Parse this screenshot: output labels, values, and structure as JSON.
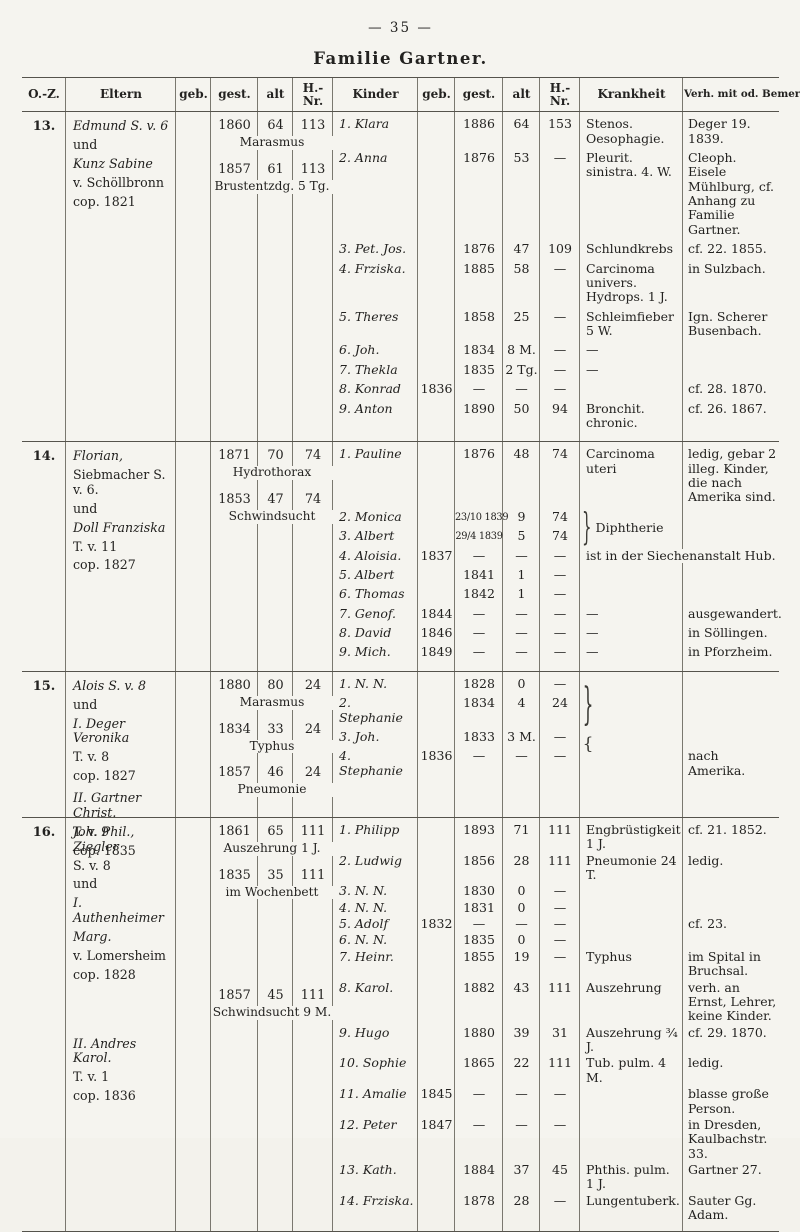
{
  "page": {
    "number": "— 35 —",
    "title": "Familie Gartner."
  },
  "table": {
    "headers": {
      "oz": "O.-Z.",
      "eltern": "Eltern",
      "pgeb": "geb.",
      "pgest": "gest.",
      "palt": "alt",
      "phnr": "H.-Nr.",
      "kinder": "Kinder",
      "kgeb": "geb.",
      "kgest": "gest.",
      "kalt": "alt",
      "khnr": "H.-Nr.",
      "krankheit": "Krankheit",
      "bemerk": "Verh. mit od. Bemerk."
    },
    "families": [
      {
        "number": "13.",
        "eltern": [
          {
            "t": "Edmund S. v. 6",
            "i": 1
          },
          {
            "t": "und"
          },
          {
            "t": "Kunz Sabine",
            "i": 1
          },
          {
            "t": "v. Schöllbronn"
          },
          {
            "t": "cop. 1821"
          }
        ],
        "parents": [
          {
            "gest": "1860",
            "alt": "64",
            "hnr": "113",
            "cause": "Marasmus"
          },
          {
            "gest": "1857",
            "alt": "61",
            "hnr": "113",
            "cause": "Brustentzdg. 5 Tg."
          }
        ],
        "children": [
          {
            "name": "1. Klara",
            "gest": "1886",
            "alt": "64",
            "hnr": "153",
            "krankheit": "Stenos. Oesophagie.",
            "bemerk": "Deger 19. 1839."
          },
          {
            "name": "2. Anna",
            "gest": "1876",
            "alt": "53",
            "hnr": "—",
            "krankheit": "Pleurit. sinistra. 4. W.",
            "bemerk": "Cleoph. Eisele Mühlburg, cf. Anhang zu Familie Gartner."
          },
          {
            "name": "3. Pet. Jos.",
            "gest": "1876",
            "alt": "47",
            "hnr": "109",
            "krankheit": "Schlundkrebs",
            "bemerk": "cf. 22. 1855."
          },
          {
            "name": "4. Frziska.",
            "gest": "1885",
            "alt": "58",
            "hnr": "—",
            "krankheit": "Carcinoma univers. Hydrops. 1 J.",
            "bemerk": "in Sulzbach."
          },
          {
            "name": "5. Theres",
            "gest": "1858",
            "alt": "25",
            "hnr": "—",
            "krankheit": "Schleimfieber 5 W.",
            "bemerk": "Ign. Scherer Busenbach."
          },
          {
            "name": "6. Joh.",
            "gest": "1834",
            "alt": "8 M.",
            "hnr": "—",
            "krankheit": "—"
          },
          {
            "name": "7. Thekla",
            "gest": "1835",
            "alt": "2 Tg.",
            "hnr": "—",
            "krankheit": "—"
          },
          {
            "name": "8. Konrad",
            "geb": "1836",
            "gest": "—",
            "alt": "—",
            "hnr": "—",
            "bemerk": "cf. 28. 1870."
          },
          {
            "name": "9. Anton",
            "gest": "1890",
            "alt": "50",
            "hnr": "94",
            "krankheit": "Bronchit. chronic.",
            "bemerk": "cf. 26. 1867."
          }
        ]
      },
      {
        "number": "14.",
        "eltern": [
          {
            "t": "Florian,",
            "i": 1
          },
          {
            "t": "Siebmacher S. v. 6."
          },
          {
            "t": "und"
          },
          {
            "t": "Doll Franziska",
            "i": 1
          },
          {
            "t": "T. v. 11"
          },
          {
            "t": "cop. 1827"
          }
        ],
        "parents": [
          {
            "gest": "1871",
            "alt": "70",
            "hnr": "74",
            "cause": "Hydrothorax"
          },
          {
            "gest": "1853",
            "alt": "47",
            "hnr": "74",
            "cause": "Schwindsucht"
          }
        ],
        "children": [
          {
            "name": "1. Pauline",
            "gest": "1876",
            "alt": "48",
            "hnr": "74",
            "krankheit": "Carcinoma uteri",
            "bemerk": "ledig, gebar 2 illeg. Kinder, die nach Amerika sind."
          },
          {
            "name": "2. Monica",
            "gest": "23/10 1839",
            "alt": "9",
            "hnr": "74",
            "krankheit": "Diphtherie",
            "krank_brace": true
          },
          {
            "name": "3. Albert",
            "gest": "29/4 1839",
            "alt": "5",
            "hnr": "74"
          },
          {
            "name": "4. Aloisia.",
            "geb": "1837",
            "gest": "—",
            "alt": "—",
            "hnr": "—",
            "krankheit": "ist in der Siechenanstalt Hub.",
            "krank_span": true
          },
          {
            "name": "5. Albert",
            "gest": "1841",
            "alt": "1",
            "hnr": "—"
          },
          {
            "name": "6. Thomas",
            "gest": "1842",
            "alt": "1",
            "hnr": "—"
          },
          {
            "name": "7. Genof.",
            "geb": "1844",
            "gest": "—",
            "alt": "—",
            "hnr": "—",
            "krankheit": "—",
            "bemerk": "ausgewandert."
          },
          {
            "name": "8. David",
            "geb": "1846",
            "gest": "—",
            "alt": "—",
            "hnr": "—",
            "krankheit": "—",
            "bemerk": "in Söllingen."
          },
          {
            "name": "9. Mich.",
            "geb": "1849",
            "gest": "—",
            "alt": "—",
            "hnr": "—",
            "krankheit": "—",
            "bemerk": "in Pforzheim."
          }
        ]
      },
      {
        "number": "15.",
        "eltern": [
          {
            "t": "Alois S. v. 8",
            "i": 1
          },
          {
            "t": "und"
          },
          {
            "t": "I. Deger Veronika",
            "i": 1
          },
          {
            "t": "T. v. 8"
          },
          {
            "t": "cop. 1827"
          },
          {
            "t": "II. Gartner Christ.",
            "i": 1
          },
          {
            "t": "T. v. 9"
          },
          {
            "t": "cop. 1835"
          }
        ],
        "parents": [
          {
            "gest": "1880",
            "alt": "80",
            "hnr": "24",
            "cause": "Marasmus"
          },
          {
            "gest": "1834",
            "alt": "33",
            "hnr": "24",
            "cause": "Typhus"
          },
          {
            "gest": "1857",
            "alt": "46",
            "hnr": "24",
            "cause": "Pneumonie"
          }
        ],
        "children": [
          {
            "name": "1. N. N.",
            "gest": "1828",
            "alt": "0",
            "hnr": "—"
          },
          {
            "name": "2. Stephanie",
            "gest": "1834",
            "alt": "4",
            "hnr": "24"
          },
          {
            "name": "3. Joh.",
            "gest": "1833",
            "alt": "3 M.",
            "hnr": "—"
          },
          {
            "name": "4. Stephanie",
            "geb": "1836",
            "gest": "—",
            "alt": "—",
            "hnr": "—",
            "bemerk": "nach Amerika."
          }
        ],
        "braces": [
          {
            "glyph": "}",
            "row_start": 0,
            "row_count": 3
          },
          {
            "glyph": "{",
            "row_start": 3,
            "row_count": 1
          }
        ]
      },
      {
        "number": "16.",
        "eltern": [
          {
            "t": "Joh. Phil., Ziegler",
            "i": 1
          },
          {
            "t": "S. v. 8"
          },
          {
            "t": "und"
          },
          {
            "t": "I. Authenheimer",
            "i": 1
          },
          {
            "t": "Marg.",
            "i": 1
          },
          {
            "t": "v. Lomersheim"
          },
          {
            "t": "cop. 1828"
          },
          {
            "t": "II. Andres Karol.",
            "i": 1
          },
          {
            "t": "T. v. 1"
          },
          {
            "t": "cop. 1836"
          }
        ],
        "parents": [
          {
            "gest": "1861",
            "alt": "65",
            "hnr": "111",
            "cause": "Auszehrung 1 J."
          },
          {
            "gest": "1835",
            "alt": "35",
            "hnr": "111",
            "cause": "im Wochenbett"
          },
          {
            "gest": "1857",
            "alt": "45",
            "hnr": "111",
            "cause": "Schwindsucht 9 M."
          }
        ],
        "children": [
          {
            "name": "1. Philipp",
            "gest": "1893",
            "alt": "71",
            "hnr": "111",
            "krankheit": "Engbrüstigkeit 1 J.",
            "bemerk": "cf. 21. 1852."
          },
          {
            "name": "2. Ludwig",
            "gest": "1856",
            "alt": "28",
            "hnr": "111",
            "krankheit": "Pneumonie 24 T.",
            "bemerk": "ledig."
          },
          {
            "name": "3. N. N.",
            "gest": "1830",
            "alt": "0",
            "hnr": "—"
          },
          {
            "name": "4. N. N.",
            "gest": "1831",
            "alt": "0",
            "hnr": "—"
          },
          {
            "name": "5. Adolf",
            "geb": "1832",
            "gest": "—",
            "alt": "—",
            "hnr": "—",
            "bemerk": "cf. 23."
          },
          {
            "name": "6. N. N.",
            "gest": "1835",
            "alt": "0",
            "hnr": "—"
          },
          {
            "name": "7. Heinr.",
            "gest": "1855",
            "alt": "19",
            "hnr": "—",
            "krankheit": "Typhus",
            "bemerk": "im Spital in Bruchsal."
          },
          {
            "name": "8. Karol.",
            "gest": "1882",
            "alt": "43",
            "hnr": "111",
            "krankheit": "Auszehrung",
            "bemerk": "verh. an Ernst, Lehrer, keine Kinder."
          },
          {
            "name": "9. Hugo",
            "gest": "1880",
            "alt": "39",
            "hnr": "31",
            "krankheit": "Auszehrung ¾ J.",
            "bemerk": "cf. 29. 1870."
          },
          {
            "name": "10. Sophie",
            "gest": "1865",
            "alt": "22",
            "hnr": "111",
            "krankheit": "Tub. pulm. 4 M.",
            "bemerk": "ledig."
          },
          {
            "name": "11. Amalie",
            "geb": "1845",
            "gest": "—",
            "alt": "—",
            "hnr": "—",
            "bemerk": "blasse große Person."
          },
          {
            "name": "12. Peter",
            "geb": "1847",
            "gest": "—",
            "alt": "—",
            "hnr": "—",
            "bemerk": "in Dresden, Kaulbachstr. 33."
          },
          {
            "name": "13. Kath.",
            "gest": "1884",
            "alt": "37",
            "hnr": "45",
            "krankheit": "Phthis. pulm. 1 J.",
            "bemerk": "Gartner 27."
          },
          {
            "name": "14. Frziska.",
            "gest": "1878",
            "alt": "28",
            "hnr": "—",
            "krankheit": "Lungentuberk.",
            "bemerk": "Sauter Gg. Adam."
          }
        ]
      }
    ]
  }
}
